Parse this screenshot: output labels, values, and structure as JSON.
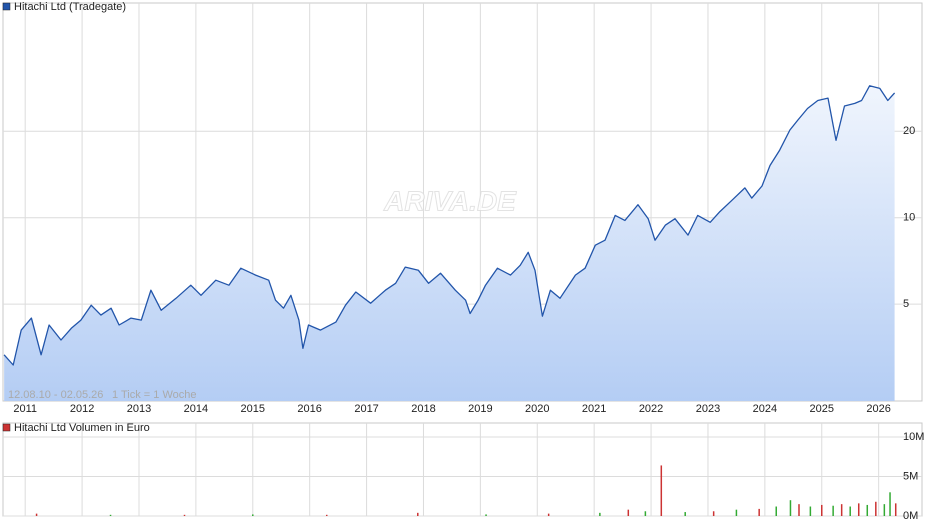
{
  "chart_data": [
    {
      "type": "line",
      "title": "Hitachi Ltd (Tradegate)",
      "period": "12.08.10 - 02.05.26",
      "tick_info": "1 Tick = 1 Woche",
      "watermark": "ARIVA.DE",
      "log_scale": true,
      "grid": true,
      "color": "#2255aa",
      "xlim": [
        2010.61,
        2026.34
      ],
      "xticks": [
        2011,
        2012,
        2013,
        2014,
        2015,
        2016,
        2017,
        2018,
        2019,
        2020,
        2021,
        2022,
        2023,
        2024,
        2025,
        2026
      ],
      "ylim": [
        2.3,
        50
      ],
      "yticks": [
        5,
        10,
        20
      ],
      "x": [
        2010.63,
        2010.79,
        2010.93,
        2011.11,
        2011.28,
        2011.42,
        2011.63,
        2011.81,
        2011.98,
        2012.16,
        2012.33,
        2012.51,
        2012.65,
        2012.86,
        2013.04,
        2013.21,
        2013.39,
        2013.65,
        2013.91,
        2014.09,
        2014.35,
        2014.58,
        2014.79,
        2015.05,
        2015.28,
        2015.4,
        2015.54,
        2015.67,
        2015.81,
        2015.88,
        2015.98,
        2016.19,
        2016.46,
        2016.63,
        2016.81,
        2017.07,
        2017.33,
        2017.51,
        2017.68,
        2017.91,
        2018.09,
        2018.3,
        2018.56,
        2018.74,
        2018.82,
        2018.96,
        2019.09,
        2019.3,
        2019.53,
        2019.7,
        2019.84,
        2019.96,
        2020.09,
        2020.23,
        2020.4,
        2020.67,
        2020.84,
        2021.02,
        2021.19,
        2021.37,
        2021.54,
        2021.77,
        2021.95,
        2022.07,
        2022.25,
        2022.42,
        2022.65,
        2022.82,
        2023.04,
        2023.21,
        2023.42,
        2023.65,
        2023.77,
        2023.95,
        2024.09,
        2024.26,
        2024.44,
        2024.58,
        2024.75,
        2024.93,
        2025.11,
        2025.25,
        2025.4,
        2025.58,
        2025.7,
        2025.84,
        2026.02,
        2026.16,
        2026.28
      ],
      "series": [
        {
          "name": "Hitachi Ltd (Tradegate)",
          "color": "#2255aa",
          "values": [
            3.33,
            3.07,
            4.06,
            4.47,
            3.33,
            4.23,
            3.75,
            4.12,
            4.4,
            4.96,
            4.58,
            4.84,
            4.23,
            4.47,
            4.4,
            5.59,
            4.76,
            5.24,
            5.82,
            5.37,
            6.06,
            5.82,
            6.67,
            6.31,
            6.06,
            5.16,
            4.84,
            5.37,
            4.4,
            3.51,
            4.23,
            4.06,
            4.33,
            4.96,
            5.51,
            5.04,
            5.59,
            5.91,
            6.73,
            6.56,
            5.91,
            6.41,
            5.59,
            5.16,
            4.64,
            5.16,
            5.82,
            6.67,
            6.31,
            6.83,
            7.58,
            6.56,
            4.54,
            5.59,
            5.24,
            6.31,
            6.67,
            8.02,
            8.35,
            10.19,
            9.79,
            11.1,
            9.92,
            8.35,
            9.42,
            9.92,
            8.7,
            10.19,
            9.64,
            10.5,
            11.5,
            12.7,
            11.7,
            12.9,
            15.2,
            17.2,
            20.2,
            21.9,
            24.0,
            25.6,
            26.1,
            18.6,
            24.5,
            25.0,
            25.6,
            28.8,
            28.2,
            25.6,
            27.2
          ]
        }
      ]
    },
    {
      "type": "bar",
      "grid": true,
      "xlim": [
        2010.61,
        2026.34
      ],
      "xticks": [
        2011,
        2012,
        2013,
        2014,
        2015,
        2016,
        2017,
        2018,
        2019,
        2020,
        2021,
        2022,
        2023,
        2024,
        2025,
        2026
      ],
      "ylim": [
        0,
        10000000
      ],
      "yticks": [
        {
          "value": 0,
          "label": "0M"
        },
        {
          "value": 5000000,
          "label": "5M"
        },
        {
          "value": 10000000,
          "label": "10M"
        }
      ],
      "x": [
        2011.2,
        2012.5,
        2013.8,
        2015.0,
        2016.3,
        2017.9,
        2019.1,
        2020.2,
        2021.1,
        2021.6,
        2021.9,
        2022.18,
        2022.6,
        2023.1,
        2023.5,
        2023.9,
        2024.2,
        2024.45,
        2024.6,
        2024.8,
        2025.0,
        2025.2,
        2025.35,
        2025.5,
        2025.65,
        2025.8,
        2025.95,
        2026.1,
        2026.2,
        2026.3
      ],
      "bar_colors": [
        "#cc3333",
        "#33aa33",
        "#cc3333",
        "#33aa33",
        "#cc3333",
        "#cc3333",
        "#33aa33",
        "#cc3333",
        "#33aa33",
        "#cc3333",
        "#33aa33",
        "#cc3333",
        "#33aa33",
        "#cc3333",
        "#33aa33",
        "#cc3333",
        "#33aa33",
        "#33aa33",
        "#cc3333",
        "#33aa33",
        "#cc3333",
        "#33aa33",
        "#cc3333",
        "#33aa33",
        "#cc3333",
        "#33aa33",
        "#cc3333",
        "#33aa33",
        "#33aa33",
        "#cc3333"
      ],
      "series": [
        {
          "name": "Hitachi Ltd Volumen in Euro",
          "color": "#cc3333",
          "values": [
            300000,
            150000,
            150000,
            200000,
            150000,
            400000,
            200000,
            300000,
            400000,
            800000,
            600000,
            6400000,
            500000,
            600000,
            800000,
            900000,
            1200000,
            2000000,
            1500000,
            1200000,
            1400000,
            1300000,
            1500000,
            1200000,
            1600000,
            1400000,
            1800000,
            1500000,
            3000000,
            1600000
          ]
        }
      ]
    }
  ]
}
